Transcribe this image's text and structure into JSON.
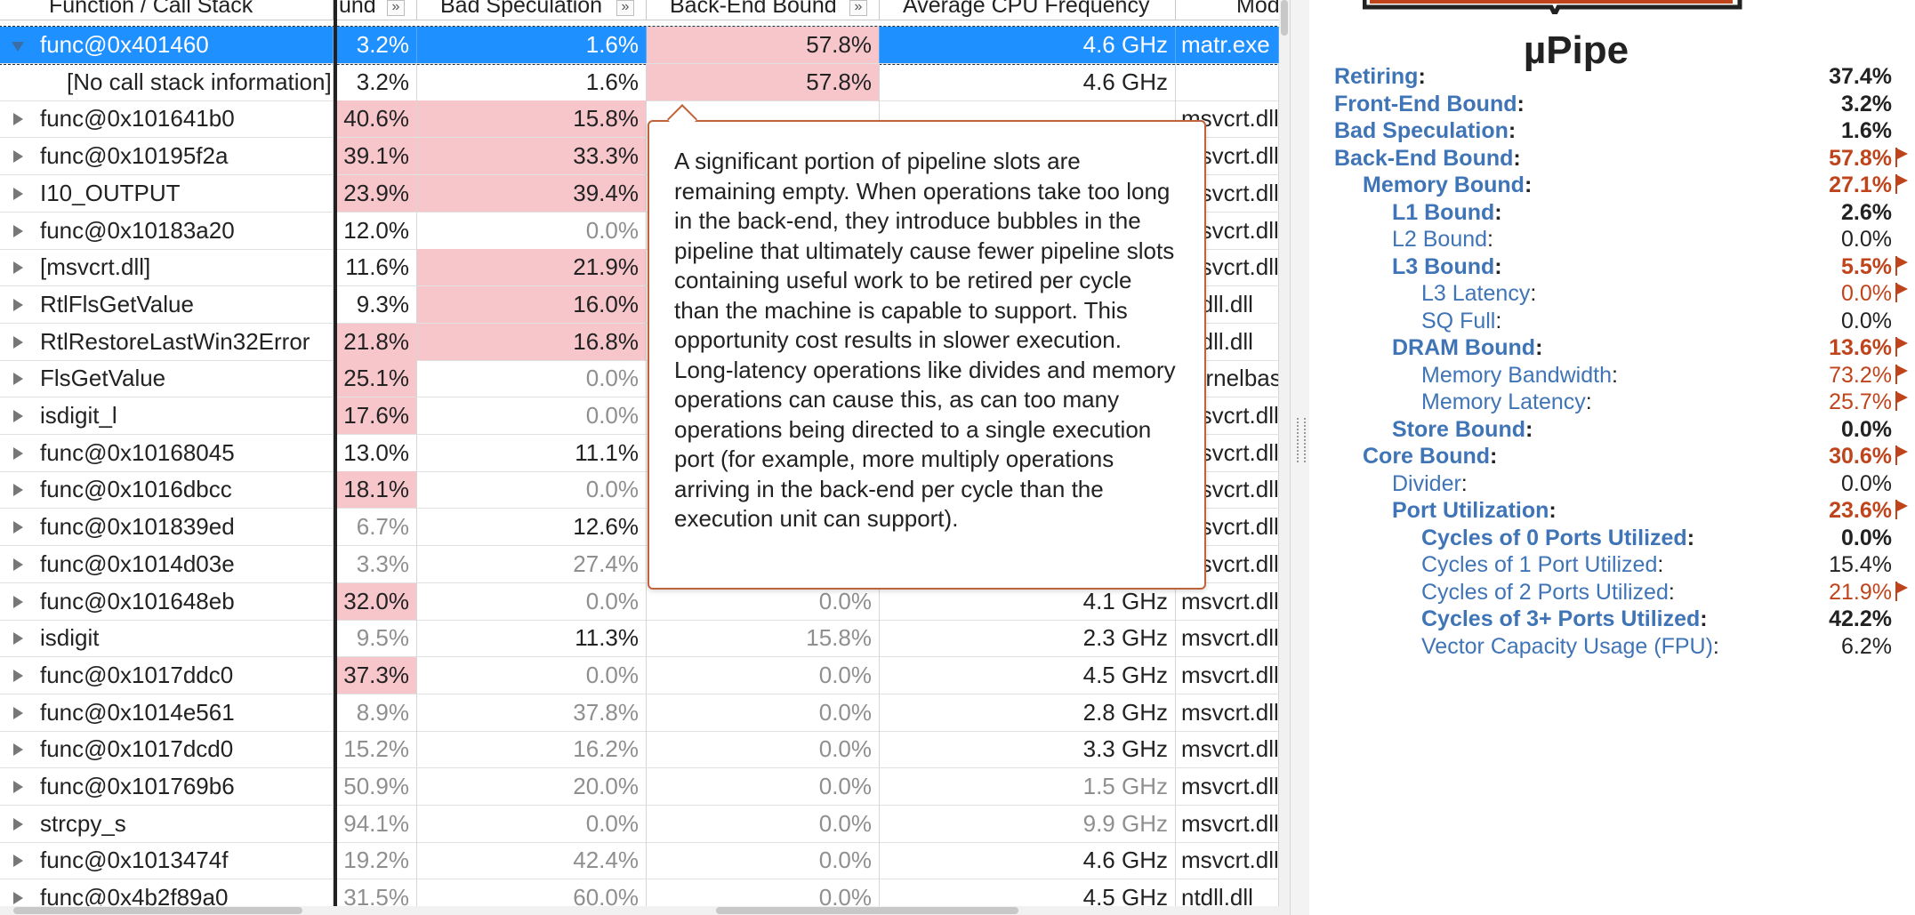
{
  "grid": {
    "headers": {
      "function": "Function / Call Stack",
      "frontend": "und",
      "bad_spec": "Bad Speculation",
      "backend": "Back-End Bound",
      "freq": "Average CPU Frequency",
      "module": "Mod"
    },
    "expand_glyph": "»",
    "rows": [
      {
        "fn": "func@0x401460",
        "fe": "3.2%",
        "bs": "1.6%",
        "be": "57.8%",
        "freq": "4.6 GHz",
        "mod": "matr.exe",
        "expanded": true,
        "selected": true,
        "fe_pink": false,
        "bs_pink": false,
        "be_pink": true,
        "fe_dim": false,
        "bs_dim": false,
        "be_dim": false,
        "freq_dim": false
      },
      {
        "fn": "[No call stack information]",
        "fe": "3.2%",
        "bs": "1.6%",
        "be": "57.8%",
        "freq": "4.6 GHz",
        "mod": "",
        "child": true,
        "fe_pink": false,
        "bs_pink": false,
        "be_pink": true
      },
      {
        "fn": "func@0x101641b0",
        "fe": "40.6%",
        "bs": "15.8%",
        "be": "",
        "freq": "",
        "mod": "msvcrt.dll",
        "fe_pink": true,
        "bs_pink": true
      },
      {
        "fn": "func@0x10195f2a",
        "fe": "39.1%",
        "bs": "33.3%",
        "be": "",
        "freq": "",
        "mod": "msvcrt.dll",
        "fe_pink": true,
        "bs_pink": true
      },
      {
        "fn": "I10_OUTPUT",
        "fe": "23.9%",
        "bs": "39.4%",
        "be": "",
        "freq": "",
        "mod": "msvcrt.dll",
        "fe_pink": true,
        "bs_pink": true
      },
      {
        "fn": "func@0x10183a20",
        "fe": "12.0%",
        "bs": "0.0%",
        "be": "",
        "freq": "",
        "mod": "msvcrt.dll",
        "bs_dim": true
      },
      {
        "fn": "[msvcrt.dll]",
        "fe": "11.6%",
        "bs": "21.9%",
        "be": "",
        "freq": "",
        "mod": "msvcrt.dll",
        "bs_pink": true
      },
      {
        "fn": "RtlFlsGetValue",
        "fe": "9.3%",
        "bs": "16.0%",
        "be": "",
        "freq": "",
        "mod": "ntdll.dll",
        "bs_pink": true
      },
      {
        "fn": "RtlRestoreLastWin32Error",
        "fe": "21.8%",
        "bs": "16.8%",
        "be": "",
        "freq": "",
        "mod": "ntdll.dll",
        "fe_pink": true,
        "bs_pink": true
      },
      {
        "fn": "FlsGetValue",
        "fe": "25.1%",
        "bs": "0.0%",
        "be": "",
        "freq": "",
        "mod": "kernelbase.dll",
        "fe_pink": true,
        "bs_dim": true
      },
      {
        "fn": "isdigit_l",
        "fe": "17.6%",
        "bs": "0.0%",
        "be": "",
        "freq": "",
        "mod": "msvcrt.dll",
        "fe_pink": true,
        "bs_dim": true
      },
      {
        "fn": "func@0x10168045",
        "fe": "13.0%",
        "bs": "11.1%",
        "be": "",
        "freq": "",
        "mod": "msvcrt.dll"
      },
      {
        "fn": "func@0x1016dbcc",
        "fe": "18.1%",
        "bs": "0.0%",
        "be": "",
        "freq": "",
        "mod": "msvcrt.dll",
        "fe_pink": true,
        "bs_dim": true
      },
      {
        "fn": "func@0x101839ed",
        "fe": "6.7%",
        "bs": "12.6%",
        "be": "",
        "freq": "",
        "mod": "msvcrt.dll",
        "fe_dim": true
      },
      {
        "fn": "func@0x1014d03e",
        "fe": "3.3%",
        "bs": "27.4%",
        "be": "",
        "freq": "",
        "mod": "msvcrt.dll",
        "fe_dim": true,
        "bs_dim": true
      },
      {
        "fn": "func@0x101648eb",
        "fe": "32.0%",
        "bs": "0.0%",
        "be": "0.0%",
        "freq": "4.1 GHz",
        "mod": "msvcrt.dll",
        "fe_pink": true,
        "bs_dim": true,
        "be_dim": true
      },
      {
        "fn": "isdigit",
        "fe": "9.5%",
        "bs": "11.3%",
        "be": "15.8%",
        "freq": "2.3 GHz",
        "mod": "msvcrt.dll",
        "fe_dim": true,
        "be_dim": true
      },
      {
        "fn": "func@0x1017ddc0",
        "fe": "37.3%",
        "bs": "0.0%",
        "be": "0.0%",
        "freq": "4.5 GHz",
        "mod": "msvcrt.dll",
        "fe_pink": true,
        "bs_dim": true,
        "be_dim": true
      },
      {
        "fn": "func@0x1014e561",
        "fe": "8.9%",
        "bs": "37.8%",
        "be": "0.0%",
        "freq": "2.8 GHz",
        "mod": "msvcrt.dll",
        "fe_dim": true,
        "bs_dim": true,
        "be_dim": true
      },
      {
        "fn": "func@0x1017dcd0",
        "fe": "15.2%",
        "bs": "16.2%",
        "be": "0.0%",
        "freq": "3.3 GHz",
        "mod": "msvcrt.dll",
        "fe_dim": true,
        "bs_dim": true,
        "be_dim": true
      },
      {
        "fn": "func@0x101769b6",
        "fe": "50.9%",
        "bs": "20.0%",
        "be": "0.0%",
        "freq": "1.5 GHz",
        "mod": "msvcrt.dll",
        "fe_dim": true,
        "bs_dim": true,
        "be_dim": true,
        "freq_dim": true
      },
      {
        "fn": "strcpy_s",
        "fe": "94.1%",
        "bs": "0.0%",
        "be": "0.0%",
        "freq": "9.9 GHz",
        "mod": "msvcrt.dll",
        "fe_dim": true,
        "bs_dim": true,
        "be_dim": true,
        "freq_dim": true
      },
      {
        "fn": "func@0x1013474f",
        "fe": "19.2%",
        "bs": "42.4%",
        "be": "0.0%",
        "freq": "4.6 GHz",
        "mod": "msvcrt.dll",
        "fe_dim": true,
        "bs_dim": true,
        "be_dim": true
      },
      {
        "fn": "func@0x4b2f89a0",
        "fe": "31.5%",
        "bs": "60.0%",
        "be": "0.0%",
        "freq": "4.5 GHz",
        "mod": "ntdll.dll",
        "fe_dim": true,
        "bs_dim": true,
        "be_dim": true
      }
    ]
  },
  "tooltip": {
    "text": "A significant portion of pipeline slots are remaining empty. When operations take too long in the back-end, they introduce bubbles in the pipeline that ultimately cause fewer pipeline slots containing useful work to be retired per cycle than the machine is capable to support. This opportunity cost results in slower execution. Long-latency operations like divides and memory operations can cause this, as can too many operations being directed to a single execution port (for example, more multiply operations arriving in the back-end per cycle than the execution unit can support)."
  },
  "panel": {
    "title": "µPipe",
    "metrics": [
      {
        "label": "Retiring",
        "value": "37.4%",
        "level": 0,
        "bold": true,
        "warn": false
      },
      {
        "label": "Front-End Bound",
        "value": "3.2%",
        "level": 0,
        "bold": true,
        "warn": false
      },
      {
        "label": "Bad Speculation",
        "value": "1.6%",
        "level": 0,
        "bold": true,
        "warn": false
      },
      {
        "label": "Back-End Bound",
        "value": "57.8%",
        "level": 0,
        "bold": true,
        "warn": true
      },
      {
        "label": "Memory Bound",
        "value": "27.1%",
        "level": 1,
        "bold": true,
        "warn": true
      },
      {
        "label": "L1 Bound",
        "value": "2.6%",
        "level": 2,
        "bold": true,
        "warn": false
      },
      {
        "label": "L2 Bound",
        "value": "0.0%",
        "level": 2,
        "bold": false,
        "warn": false
      },
      {
        "label": "L3 Bound",
        "value": "5.5%",
        "level": 2,
        "bold": true,
        "warn": true
      },
      {
        "label": "L3 Latency",
        "value": "0.0%",
        "level": 3,
        "bold": false,
        "warn": true
      },
      {
        "label": "SQ Full",
        "value": "0.0%",
        "level": 3,
        "bold": false,
        "warn": false
      },
      {
        "label": "DRAM Bound",
        "value": "13.6%",
        "level": 2,
        "bold": true,
        "warn": true
      },
      {
        "label": "Memory Bandwidth",
        "value": "73.2%",
        "level": 3,
        "bold": false,
        "warn": true
      },
      {
        "label": "Memory Latency",
        "value": "25.7%",
        "level": 3,
        "bold": false,
        "warn": true
      },
      {
        "label": "Store Bound",
        "value": "0.0%",
        "level": 2,
        "bold": true,
        "warn": false
      },
      {
        "label": "Core Bound",
        "value": "30.6%",
        "level": 1,
        "bold": true,
        "warn": true
      },
      {
        "label": "Divider",
        "value": "0.0%",
        "level": 2,
        "bold": false,
        "warn": false
      },
      {
        "label": "Port Utilization",
        "value": "23.6%",
        "level": 2,
        "bold": true,
        "warn": true
      },
      {
        "label": "Cycles of 0 Ports Utilized",
        "value": "0.0%",
        "level": 3,
        "bold": true,
        "warn": false
      },
      {
        "label": "Cycles of 1 Port Utilized",
        "value": "15.4%",
        "level": 3,
        "bold": false,
        "warn": false
      },
      {
        "label": "Cycles of 2 Ports Utilized",
        "value": "21.9%",
        "level": 3,
        "bold": false,
        "warn": true
      },
      {
        "label": "Cycles of 3+ Ports Utilized",
        "value": "42.2%",
        "level": 3,
        "bold": true,
        "warn": false
      },
      {
        "label": "Vector Capacity Usage (FPU)",
        "value": "6.2%",
        "level": 3,
        "bold": false,
        "warn": false
      }
    ]
  },
  "colors": {
    "selection": "#1e90ff",
    "highlight": "#f7c6cb",
    "warn": "#c0441b",
    "link": "#3f74b6",
    "tooltip_border": "#c0623a"
  }
}
